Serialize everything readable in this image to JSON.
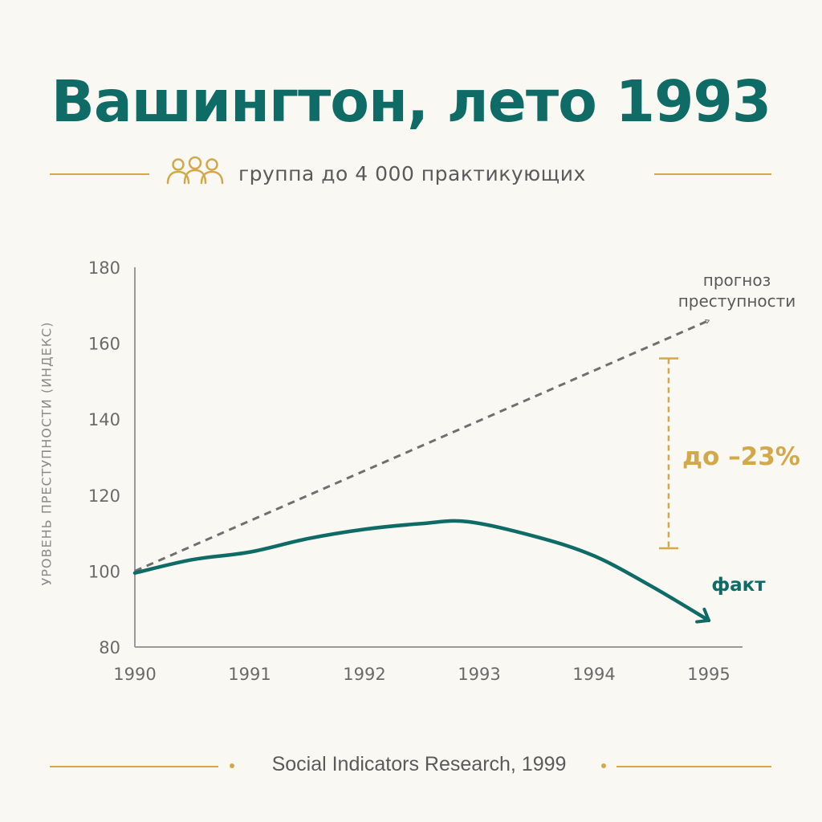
{
  "title": "Вашингтон, лето 1993",
  "subtitle": {
    "icon": "people-group-icon",
    "text": "группа до 4 000 практикующих"
  },
  "colors": {
    "accent": "#0f6b66",
    "gold": "#d3a84a",
    "forecast": "#6f6f6f",
    "background": "#faf8f3"
  },
  "chart_data": {
    "type": "line",
    "xlabel": "",
    "ylabel": "УРОВЕНЬ ПРЕСТУПНОСТИ (ИНДЕКС)",
    "xlim": [
      1990,
      1995
    ],
    "ylim": [
      80,
      180
    ],
    "x_ticks": [
      "1990",
      "1991",
      "1992",
      "1993",
      "1994",
      "1995"
    ],
    "y_ticks": [
      "80",
      "100",
      "120",
      "140",
      "160",
      "180"
    ],
    "grid": false,
    "series": [
      {
        "name": "прогноз преступности",
        "label_lines": [
          "прогноз",
          "преступности"
        ],
        "style": "dashed",
        "color": "#6f6f6f",
        "x": [
          1990,
          1995
        ],
        "y": [
          100,
          166
        ]
      },
      {
        "name": "факт",
        "label_lines": [
          "факт"
        ],
        "style": "solid",
        "color": "#0f6b66",
        "x": [
          1990,
          1990.5,
          1991,
          1991.5,
          1992,
          1992.5,
          1992.9,
          1993.5,
          1994,
          1994.5,
          1995
        ],
        "y": [
          99.5,
          103,
          105,
          108.5,
          111,
          112.5,
          113,
          109,
          104,
          96,
          87
        ]
      }
    ],
    "annotations": [
      {
        "text": "до –23%",
        "x": 1994.65,
        "y_range": [
          106,
          156
        ],
        "color": "#d3a84a"
      }
    ]
  },
  "footer": {
    "source": "Social Indicators Research, 1999"
  }
}
